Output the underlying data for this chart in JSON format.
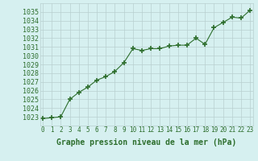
{
  "x": [
    0,
    1,
    2,
    3,
    4,
    5,
    6,
    7,
    8,
    9,
    10,
    11,
    12,
    13,
    14,
    15,
    16,
    17,
    18,
    19,
    20,
    21,
    22,
    23
  ],
  "y": [
    1022.8,
    1022.9,
    1023.0,
    1025.0,
    1025.8,
    1026.4,
    1027.2,
    1027.6,
    1028.2,
    1029.2,
    1030.8,
    1030.6,
    1030.8,
    1030.8,
    1031.1,
    1031.2,
    1031.2,
    1032.0,
    1031.3,
    1033.2,
    1033.8,
    1034.4,
    1034.3,
    1035.2
  ],
  "line_color": "#2d6e2d",
  "marker": "+",
  "marker_size": 4,
  "marker_linewidth": 1.2,
  "bg_color": "#d6f0f0",
  "grid_color": "#b8d0d0",
  "xlabel": "Graphe pression niveau de la mer (hPa)",
  "xlabel_fontsize": 7,
  "xlabel_fontweight": "bold",
  "ytick_fontsize": 6,
  "xtick_fontsize": 5.5,
  "ylim": [
    1022,
    1036
  ],
  "xlim": [
    -0.3,
    23.3
  ],
  "yticks": [
    1023,
    1024,
    1025,
    1026,
    1027,
    1028,
    1029,
    1030,
    1031,
    1032,
    1033,
    1034,
    1035
  ],
  "xticks": [
    0,
    1,
    2,
    3,
    4,
    5,
    6,
    7,
    8,
    9,
    10,
    11,
    12,
    13,
    14,
    15,
    16,
    17,
    18,
    19,
    20,
    21,
    22,
    23
  ]
}
